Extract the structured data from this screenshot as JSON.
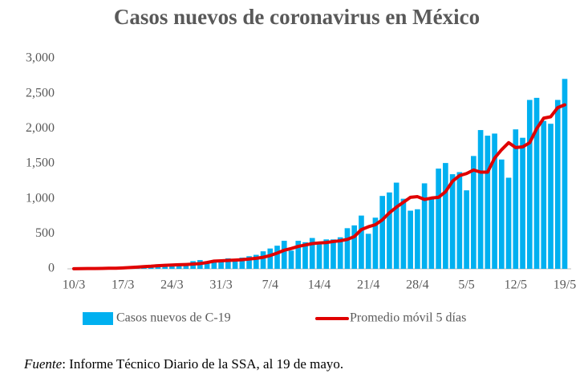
{
  "chart_data": {
    "type": "bar",
    "title": "Casos nuevos de coronavirus en México",
    "categories": [
      "10/3",
      null,
      null,
      null,
      null,
      null,
      null,
      "17/3",
      null,
      null,
      null,
      null,
      null,
      null,
      "24/3",
      null,
      null,
      null,
      null,
      null,
      null,
      "31/3",
      null,
      null,
      null,
      null,
      null,
      null,
      "7/4",
      null,
      null,
      null,
      null,
      null,
      null,
      "14/4",
      null,
      null,
      null,
      null,
      null,
      null,
      "21/4",
      null,
      null,
      null,
      null,
      null,
      null,
      "28/4",
      null,
      null,
      null,
      null,
      null,
      null,
      "5/5",
      null,
      null,
      null,
      null,
      null,
      null,
      "12/5",
      null,
      null,
      null,
      null,
      null,
      null,
      "19/5"
    ],
    "series": [
      {
        "name": "Casos nuevos de C-19",
        "type": "bar",
        "color": "#00b0f0",
        "values": [
          2,
          4,
          5,
          5,
          10,
          15,
          12,
          29,
          25,
          46,
          38,
          48,
          65,
          51,
          38,
          70,
          70,
          110,
          125,
          100,
          120,
          130,
          150,
          125,
          160,
          180,
          200,
          250,
          290,
          330,
          400,
          260,
          400,
          380,
          440,
          380,
          420,
          420,
          450,
          580,
          620,
          760,
          500,
          730,
          1040,
          1090,
          1230,
          1000,
          830,
          850,
          1220,
          1000,
          1430,
          1510,
          1350,
          1380,
          1120,
          1610,
          1980,
          1900,
          1930,
          1560,
          1300,
          1990,
          1870,
          2410,
          2440,
          2110,
          2070,
          2410,
          2710
        ]
      },
      {
        "name": "Promedio móvil 5 días",
        "type": "line",
        "color": "#e00000",
        "values": [
          2,
          3,
          4,
          4,
          5,
          8,
          9,
          13,
          18,
          25,
          32,
          37,
          45,
          50,
          55,
          58,
          62,
          68,
          75,
          90,
          110,
          115,
          120,
          125,
          130,
          140,
          150,
          165,
          190,
          225,
          265,
          290,
          320,
          340,
          360,
          370,
          375,
          390,
          400,
          420,
          460,
          560,
          600,
          630,
          700,
          800,
          880,
          950,
          1020,
          1030,
          990,
          1010,
          1020,
          1100,
          1250,
          1330,
          1360,
          1410,
          1380,
          1380,
          1580,
          1700,
          1800,
          1730,
          1740,
          1800,
          2000,
          2150,
          2170,
          2300,
          2340
        ]
      }
    ],
    "ylim": [
      0,
      3000
    ],
    "yticks": [
      0,
      500,
      {
        "value": 1000,
        "label": "1,000"
      },
      {
        "value": 1500,
        "label": "1,500"
      },
      {
        "value": 2000,
        "label": "2,000"
      },
      {
        "value": 2500,
        "label": "2,500"
      },
      {
        "value": 3000,
        "label": "3,000"
      }
    ],
    "legend": "bottom",
    "note": {
      "label": "Fuente",
      "text": ": Informe Técnico Diario de la SSA, al 19 de mayo."
    }
  }
}
